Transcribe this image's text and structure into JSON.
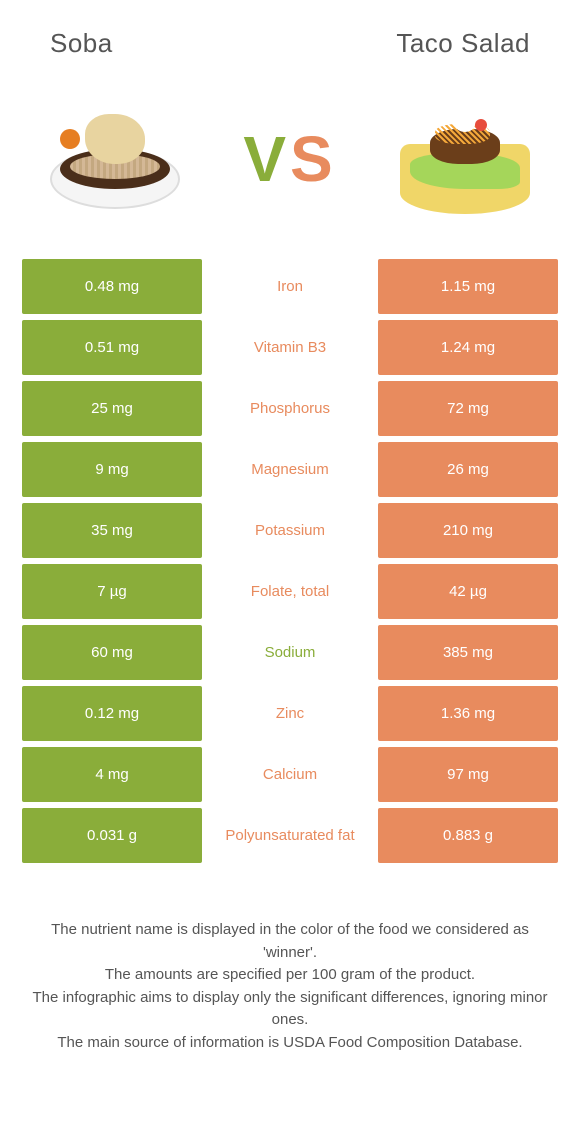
{
  "colors": {
    "left": "#8aad3a",
    "right": "#e88b5e",
    "text": "#555555",
    "bg": "#ffffff"
  },
  "food_left": {
    "name": "Soba"
  },
  "food_right": {
    "name": "Taco Salad"
  },
  "vs": {
    "v": "V",
    "s": "S"
  },
  "rows": [
    {
      "left": "0.48 mg",
      "name": "Iron",
      "right": "1.15 mg",
      "winner": "right"
    },
    {
      "left": "0.51 mg",
      "name": "Vitamin B3",
      "right": "1.24 mg",
      "winner": "right"
    },
    {
      "left": "25 mg",
      "name": "Phosphorus",
      "right": "72 mg",
      "winner": "right"
    },
    {
      "left": "9 mg",
      "name": "Magnesium",
      "right": "26 mg",
      "winner": "right"
    },
    {
      "left": "35 mg",
      "name": "Potassium",
      "right": "210 mg",
      "winner": "right"
    },
    {
      "left": "7 µg",
      "name": "Folate, total",
      "right": "42 µg",
      "winner": "right"
    },
    {
      "left": "60 mg",
      "name": "Sodium",
      "right": "385 mg",
      "winner": "left"
    },
    {
      "left": "0.12 mg",
      "name": "Zinc",
      "right": "1.36 mg",
      "winner": "right"
    },
    {
      "left": "4 mg",
      "name": "Calcium",
      "right": "97 mg",
      "winner": "right"
    },
    {
      "left": "0.031 g",
      "name": "Polyunsaturated fat",
      "right": "0.883 g",
      "winner": "right"
    }
  ],
  "footer": {
    "l1": "The nutrient name is displayed in the color of the food we considered as 'winner'.",
    "l2": "The amounts are specified per 100 gram of the product.",
    "l3": "The infographic aims to display only the significant differences, ignoring minor ones.",
    "l4": "The main source of information is USDA Food Composition Database."
  }
}
